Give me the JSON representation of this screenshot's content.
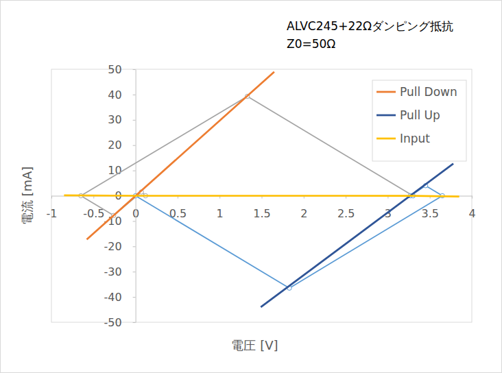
{
  "chart_data": {
    "type": "line",
    "title": "ALVC245+22Ωダンピング抵抗",
    "subtitle": "Z0=50Ω",
    "x_label": "電圧 [V]",
    "y_label": "電流 [mA]",
    "xlim": [
      -1,
      4
    ],
    "xticks": [
      -1,
      -0.5,
      0,
      0.5,
      1,
      1.5,
      2,
      2.5,
      3,
      3.5,
      4
    ],
    "ylim": [
      -50,
      50
    ],
    "yticks": [
      -50,
      -40,
      -30,
      -20,
      -10,
      0,
      10,
      20,
      30,
      40,
      50
    ],
    "grid": false,
    "legend": "top-right",
    "series": [
      {
        "name": "Pull Down",
        "color": "#ed7d31",
        "x": [
          -0.58,
          1.65
        ],
        "values": [
          -17.3,
          49
        ]
      },
      {
        "name": "Pull Up",
        "color": "#2f5597",
        "x": [
          1.49,
          3.78
        ],
        "values": [
          -44,
          12.7
        ]
      },
      {
        "name": "Input",
        "color": "#ffc000",
        "x": [
          -0.85,
          0,
          3.3,
          3.85
        ],
        "values": [
          0.2,
          0,
          0,
          -0.3
        ]
      },
      {
        "color": "#a5a5a5",
        "marker": "circle",
        "x": [
          3.3,
          1.33,
          -0.65,
          -0.26,
          0.07,
          0.12
        ],
        "values": [
          0,
          39.3,
          0,
          -7.8,
          1.5,
          0
        ]
      },
      {
        "color": "#5b9bd5",
        "marker": "circle",
        "x": [
          0,
          1.83,
          3.65,
          3.45,
          3.27,
          3.3
        ],
        "values": [
          0,
          -36.5,
          0,
          4,
          0,
          0
        ]
      }
    ]
  }
}
